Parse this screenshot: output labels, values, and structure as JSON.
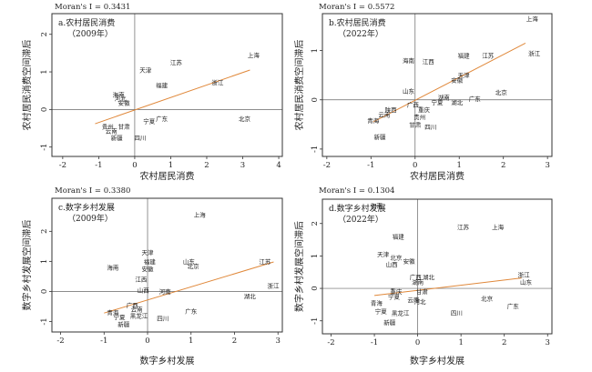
{
  "charts": [
    {
      "chart_data": {
        "type": "scatter",
        "moran_label": "Moran's I = 0.3431",
        "title": "a.农村居民消费",
        "subtitle": "（2009年）",
        "xlabel": "农村居民消费",
        "ylabel": "农村居民消费空间滞后",
        "xlim": [
          -2.3,
          4.1
        ],
        "ylim": [
          -1.25,
          2.55
        ],
        "xticks": [
          -2,
          -1,
          0,
          1,
          2,
          3,
          4
        ],
        "yticks": [
          -1,
          0,
          1,
          2
        ],
        "fit_line": {
          "x": [
            -1.1,
            3.2
          ],
          "y": [
            -0.38,
            1.05
          ]
        },
        "points": [
          {
            "label": "上海",
            "x": 3.3,
            "y": 1.45
          },
          {
            "label": "江苏",
            "x": 1.15,
            "y": 1.25
          },
          {
            "label": "天津",
            "x": 0.3,
            "y": 1.05
          },
          {
            "label": "浙江",
            "x": 2.3,
            "y": 0.72
          },
          {
            "label": "福建",
            "x": 0.75,
            "y": 0.65
          },
          {
            "label": "海南",
            "x": -0.45,
            "y": 0.4
          },
          {
            "label": "河北",
            "x": -0.4,
            "y": 0.3
          },
          {
            "label": "安徽",
            "x": -0.3,
            "y": 0.18
          },
          {
            "label": "广东",
            "x": 0.75,
            "y": -0.25
          },
          {
            "label": "北京",
            "x": 3.05,
            "y": -0.25
          },
          {
            "label": "宁夏",
            "x": 0.4,
            "y": -0.3
          },
          {
            "label": "贵州",
            "x": -0.75,
            "y": -0.45
          },
          {
            "label": "甘肃",
            "x": -0.3,
            "y": -0.45
          },
          {
            "label": "云南",
            "x": -0.65,
            "y": -0.57
          },
          {
            "label": "新疆",
            "x": -0.5,
            "y": -0.75
          },
          {
            "label": "四川",
            "x": 0.15,
            "y": -0.75
          }
        ]
      }
    },
    {
      "chart_data": {
        "type": "scatter",
        "moran_label": "Moran's I = 0.5572",
        "title": "b.农村居民消费",
        "subtitle": "（2022年）",
        "xlabel": "农村居民消费",
        "ylabel": "农村居民消费空间滞后",
        "xlim": [
          -2.1,
          3.1
        ],
        "ylim": [
          -1.15,
          1.75
        ],
        "xticks": [
          -2,
          -1,
          0,
          1,
          2,
          3
        ],
        "yticks": [
          -1,
          0,
          1
        ],
        "fit_line": {
          "x": [
            -0.95,
            2.5
          ],
          "y": [
            -0.45,
            1.15
          ]
        },
        "points": [
          {
            "label": "上海",
            "x": 2.65,
            "y": 1.65
          },
          {
            "label": "浙江",
            "x": 2.7,
            "y": 0.95
          },
          {
            "label": "福建",
            "x": 1.1,
            "y": 0.9
          },
          {
            "label": "江苏",
            "x": 1.65,
            "y": 0.9
          },
          {
            "label": "海南",
            "x": -0.15,
            "y": 0.8
          },
          {
            "label": "江西",
            "x": 0.3,
            "y": 0.78
          },
          {
            "label": "天津",
            "x": 1.1,
            "y": 0.5
          },
          {
            "label": "安徽",
            "x": 0.95,
            "y": 0.4
          },
          {
            "label": "山东",
            "x": -0.15,
            "y": 0.18
          },
          {
            "label": "北京",
            "x": 1.95,
            "y": 0.15
          },
          {
            "label": "广东",
            "x": 1.35,
            "y": 0.02
          },
          {
            "label": "湖南",
            "x": 0.65,
            "y": 0.05
          },
          {
            "label": "湖北",
            "x": 0.95,
            "y": -0.05
          },
          {
            "label": "宁夏",
            "x": 0.5,
            "y": -0.05
          },
          {
            "label": "广西",
            "x": -0.05,
            "y": -0.1
          },
          {
            "label": "陕西",
            "x": -0.55,
            "y": -0.2
          },
          {
            "label": "重庆",
            "x": 0.2,
            "y": -0.2
          },
          {
            "label": "云南",
            "x": -0.7,
            "y": -0.3
          },
          {
            "label": "贵州",
            "x": 0.1,
            "y": -0.35
          },
          {
            "label": "青海",
            "x": -0.95,
            "y": -0.42
          },
          {
            "label": "甘肃",
            "x": 0.0,
            "y": -0.5
          },
          {
            "label": "四川",
            "x": 0.35,
            "y": -0.55
          },
          {
            "label": "新疆",
            "x": -0.8,
            "y": -0.75
          }
        ]
      }
    },
    {
      "chart_data": {
        "type": "scatter",
        "moran_label": "Moran's I = 0.3380",
        "title": "c.数字乡村发展",
        "subtitle": "（2009年）",
        "xlabel": "数字乡村发展",
        "ylabel": "数字乡村发展空间滞后",
        "xlim": [
          -2.2,
          3.1
        ],
        "ylim": [
          -1.35,
          3.1
        ],
        "xticks": [
          -2,
          -1,
          0,
          1,
          2,
          3
        ],
        "yticks": [
          -1,
          0,
          1,
          2
        ],
        "fit_line": {
          "x": [
            -1.0,
            2.9
          ],
          "y": [
            -0.72,
            0.98
          ]
        },
        "points": [
          {
            "label": "上海",
            "x": 1.2,
            "y": 2.55
          },
          {
            "label": "天津",
            "x": 0.0,
            "y": 1.3
          },
          {
            "label": "福建",
            "x": 0.05,
            "y": 1.0
          },
          {
            "label": "山东",
            "x": 0.95,
            "y": 1.0
          },
          {
            "label": "江苏",
            "x": 2.7,
            "y": 1.0
          },
          {
            "label": "海南",
            "x": -0.8,
            "y": 0.8
          },
          {
            "label": "安徽",
            "x": 0.0,
            "y": 0.75
          },
          {
            "label": "北京",
            "x": 1.05,
            "y": 0.85
          },
          {
            "label": "浙江",
            "x": 3.05,
            "y": 0.2
          },
          {
            "label": "江西",
            "x": -0.15,
            "y": 0.4
          },
          {
            "label": "山西",
            "x": -0.1,
            "y": 0.05
          },
          {
            "label": "河南",
            "x": 0.4,
            "y": 0.0
          },
          {
            "label": "湖北",
            "x": 2.35,
            "y": -0.15
          },
          {
            "label": "广西",
            "x": -0.35,
            "y": -0.45
          },
          {
            "label": "云南",
            "x": -0.25,
            "y": -0.6
          },
          {
            "label": "青海",
            "x": -0.8,
            "y": -0.7
          },
          {
            "label": "宁夏",
            "x": -0.65,
            "y": -0.85
          },
          {
            "label": "黑龙江",
            "x": -0.2,
            "y": -0.8
          },
          {
            "label": "广东",
            "x": 1.0,
            "y": -0.65
          },
          {
            "label": "四川",
            "x": 0.35,
            "y": -0.9
          },
          {
            "label": "新疆",
            "x": -0.55,
            "y": -1.1
          }
        ]
      }
    },
    {
      "chart_data": {
        "type": "scatter",
        "moran_label": "Moran's I = 0.1304",
        "title": "d.数字乡村发展",
        "subtitle": "（2022年）",
        "xlabel": "数字乡村发展",
        "ylabel": "数字乡村发展空间滞后",
        "xlim": [
          -2.2,
          3.1
        ],
        "ylim": [
          -1.4,
          2.75
        ],
        "xticks": [
          -2,
          -1,
          0,
          1,
          2,
          3
        ],
        "yticks": [
          -1,
          0,
          1,
          2
        ],
        "fit_line": {
          "x": [
            -1.0,
            2.4
          ],
          "y": [
            -0.22,
            0.32
          ]
        },
        "points": [
          {
            "label": "海南",
            "x": -0.95,
            "y": 2.55
          },
          {
            "label": "江苏",
            "x": 1.05,
            "y": 1.9
          },
          {
            "label": "上海",
            "x": 1.85,
            "y": 1.9
          },
          {
            "label": "福建",
            "x": -0.45,
            "y": 1.6
          },
          {
            "label": "天津",
            "x": -0.8,
            "y": 1.05
          },
          {
            "label": "北京",
            "x": -0.5,
            "y": 0.95
          },
          {
            "label": "安徽",
            "x": -0.2,
            "y": 0.85
          },
          {
            "label": "山西",
            "x": -0.6,
            "y": 0.75
          },
          {
            "label": "广西",
            "x": -0.05,
            "y": 0.35
          },
          {
            "label": "湖北",
            "x": 0.25,
            "y": 0.35
          },
          {
            "label": "湖南",
            "x": 0.0,
            "y": 0.2
          },
          {
            "label": "浙江",
            "x": 2.45,
            "y": 0.42
          },
          {
            "label": "山东",
            "x": 2.5,
            "y": 0.2
          },
          {
            "label": "重庆",
            "x": -0.5,
            "y": -0.1
          },
          {
            "label": "甘肃",
            "x": 0.1,
            "y": -0.1
          },
          {
            "label": "宁夏",
            "x": -0.55,
            "y": -0.25
          },
          {
            "label": "青海",
            "x": -0.95,
            "y": -0.45
          },
          {
            "label": "云南",
            "x": -0.1,
            "y": -0.35
          },
          {
            "label": "河北",
            "x": 0.05,
            "y": -0.4
          },
          {
            "label": "北京",
            "x": 1.6,
            "y": -0.3
          },
          {
            "label": "广东",
            "x": 2.2,
            "y": -0.55
          },
          {
            "label": "宁夏",
            "x": -0.85,
            "y": -0.7
          },
          {
            "label": "黑龙江",
            "x": -0.4,
            "y": -0.75
          },
          {
            "label": "四川",
            "x": 0.9,
            "y": -0.75
          },
          {
            "label": "新疆",
            "x": -0.65,
            "y": -1.05
          }
        ]
      }
    }
  ]
}
